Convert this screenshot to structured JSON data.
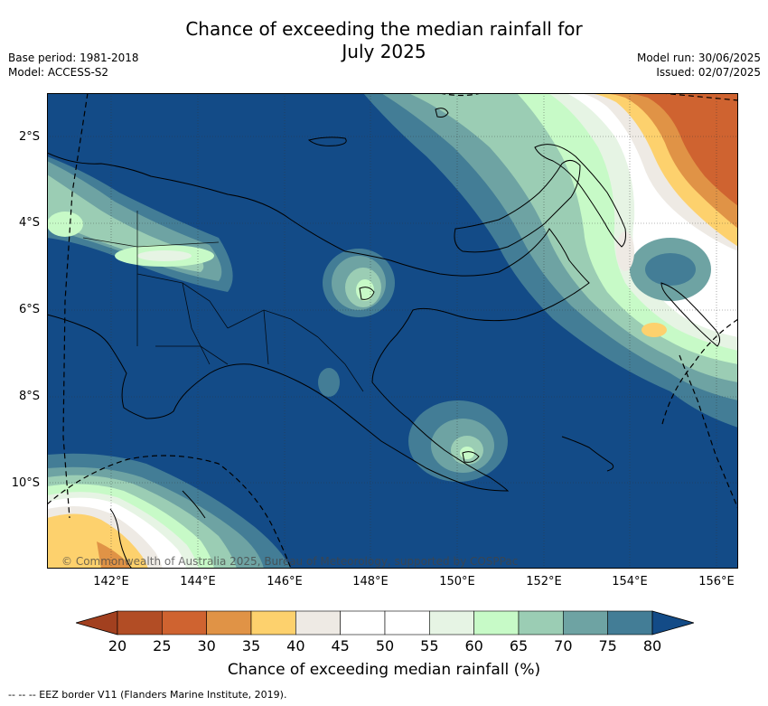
{
  "title_line1": "Chance of exceeding the median rainfall for",
  "title_line2": "July 2025",
  "base_period": "Base period: 1981-2018",
  "model": "Model: ACCESS-S2",
  "model_run": "Model run: 30/06/2025",
  "issued": "Issued: 02/07/2025",
  "y_ticks": [
    "2°S",
    "4°S",
    "6°S",
    "8°S",
    "10°S"
  ],
  "x_ticks": [
    "142°E",
    "144°E",
    "146°E",
    "148°E",
    "150°E",
    "152°E",
    "154°E",
    "156°E"
  ],
  "copyright": "© Commonwealth of Australia 2025, Bureau of Meteorology, supported by COSPPac",
  "colorbar": {
    "labels": [
      "20",
      "25",
      "30",
      "35",
      "40",
      "45",
      "50",
      "55",
      "60",
      "65",
      "70",
      "75",
      "80"
    ],
    "title": "Chance of exceeding median rainfall (%)",
    "colors": [
      "#a2401f",
      "#b24d25",
      "#cf6330",
      "#e09346",
      "#fdd16d",
      "#eeeae4",
      "#ffffff",
      "#ffffff",
      "#e6f4e4",
      "#c7fac7",
      "#9bcdb4",
      "#6ea3a3",
      "#437d96",
      "#134b87"
    ]
  },
  "footnote": "--  --  -- EEZ border V11 (Flanders Marine Institute, 2019).",
  "map": {
    "region": "Papua New Guinea",
    "lat_range": [
      "1°S",
      "12°S"
    ],
    "lon_range": [
      "140.5°E",
      "156.5°E"
    ],
    "base_color": "#134b87",
    "features": [
      "wet anomaly over Bismarck Sea and northern PNG islands",
      "dry anomaly north-east near 154–156°E",
      "dry anomaly south-west over Cape York"
    ]
  }
}
